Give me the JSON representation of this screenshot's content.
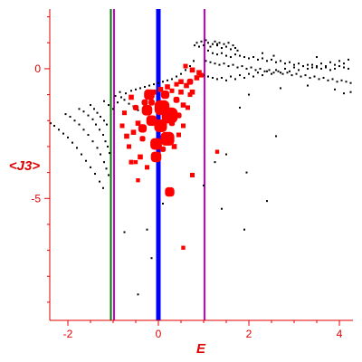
{
  "chart_data": {
    "type": "scatter",
    "title": "",
    "xlabel": "E",
    "ylabel": "<J3>",
    "xlim": [
      -2.4,
      4.3
    ],
    "ylim": [
      -9.7,
      2.3
    ],
    "grid": false,
    "colors": {
      "axes": "#e00000",
      "tick_labels": "#e00000",
      "axis_titles": "#e00000",
      "black_points": "#000000",
      "red_points": "#ff0000",
      "line_green": "#007700",
      "line_magenta": "#cc00cc",
      "line_blue": "#0000ff"
    },
    "x_ticks": [
      {
        "value": -2,
        "label": "-2"
      },
      {
        "value": 0,
        "label": "0"
      },
      {
        "value": 2,
        "label": "2"
      },
      {
        "value": 4,
        "label": "4"
      }
    ],
    "y_ticks": [
      {
        "value": 0,
        "label": "0"
      },
      {
        "value": -5,
        "label": "-5"
      }
    ],
    "vertical_lines": [
      {
        "x": -1.05,
        "color": "#007700",
        "weight": "thin"
      },
      {
        "x": -0.98,
        "color": "#cc00cc",
        "weight": "thin"
      },
      {
        "x": 0.0,
        "color": "#0000ff",
        "weight": "thick"
      },
      {
        "x": 1.02,
        "color": "#cc00cc",
        "weight": "thin"
      }
    ],
    "series": [
      {
        "color": "#000000",
        "marker": "dot",
        "points": [
          [
            -2.38,
            -2.1
          ],
          [
            -2.3,
            -2.2
          ],
          [
            -2.2,
            -2.35
          ],
          [
            -2.1,
            -2.5
          ],
          [
            -2.0,
            -2.65
          ],
          [
            -1.9,
            -2.85
          ],
          [
            -1.8,
            -3.05
          ],
          [
            -1.7,
            -3.3
          ],
          [
            -1.6,
            -3.55
          ],
          [
            -1.5,
            -3.8
          ],
          [
            -1.4,
            -4.05
          ],
          [
            -1.3,
            -4.35
          ],
          [
            -1.22,
            -4.6
          ],
          [
            -2.05,
            -1.75
          ],
          [
            -1.95,
            -1.85
          ],
          [
            -1.85,
            -2.0
          ],
          [
            -1.75,
            -2.15
          ],
          [
            -1.65,
            -2.35
          ],
          [
            -1.55,
            -2.55
          ],
          [
            -1.45,
            -2.8
          ],
          [
            -1.35,
            -3.05
          ],
          [
            -1.28,
            -3.3
          ],
          [
            -1.2,
            -3.6
          ],
          [
            -1.15,
            -3.85
          ],
          [
            -1.1,
            -4.1
          ],
          [
            -1.75,
            -1.55
          ],
          [
            -1.65,
            -1.65
          ],
          [
            -1.55,
            -1.8
          ],
          [
            -1.45,
            -1.95
          ],
          [
            -1.38,
            -2.15
          ],
          [
            -1.3,
            -2.35
          ],
          [
            -1.22,
            -2.55
          ],
          [
            -1.17,
            -2.8
          ],
          [
            -1.12,
            -3.0
          ],
          [
            -1.08,
            -3.25
          ],
          [
            -1.5,
            -1.4
          ],
          [
            -1.42,
            -1.55
          ],
          [
            -1.35,
            -1.7
          ],
          [
            -1.28,
            -1.85
          ],
          [
            -1.2,
            -2.0
          ],
          [
            -1.14,
            -2.15
          ],
          [
            -1.2,
            -1.25
          ],
          [
            -1.1,
            -1.4
          ],
          [
            -1.0,
            -1.55
          ],
          [
            -0.9,
            -1.3
          ],
          [
            -0.82,
            -1.1
          ],
          [
            -0.72,
            -0.95
          ],
          [
            -0.6,
            -0.85
          ],
          [
            -0.5,
            -0.8
          ],
          [
            -0.4,
            -0.75
          ],
          [
            -0.3,
            -0.7
          ],
          [
            -0.2,
            -0.65
          ],
          [
            -0.1,
            -0.6
          ],
          [
            0.0,
            -0.55
          ],
          [
            0.1,
            -0.5
          ],
          [
            0.2,
            -0.45
          ],
          [
            0.3,
            -0.4
          ],
          [
            0.4,
            -0.3
          ],
          [
            0.5,
            -0.2
          ],
          [
            0.6,
            -0.05
          ],
          [
            0.7,
            0.1
          ],
          [
            0.78,
            0.3
          ],
          [
            -0.95,
            -1.05
          ],
          [
            -0.85,
            -0.9
          ],
          [
            -0.75,
            -1.2
          ],
          [
            -0.65,
            -1.35
          ],
          [
            -0.55,
            -1.45
          ],
          [
            -0.45,
            -1.6
          ],
          [
            -0.35,
            -1.3
          ],
          [
            -0.25,
            -1.15
          ],
          [
            0.8,
            0.9
          ],
          [
            0.85,
            1.0
          ],
          [
            0.9,
            0.85
          ],
          [
            0.95,
            1.05
          ],
          [
            1.0,
            0.9
          ],
          [
            1.05,
            1.1
          ],
          [
            1.1,
            1.0
          ],
          [
            1.15,
            0.85
          ],
          [
            1.2,
            0.95
          ],
          [
            1.25,
            1.05
          ],
          [
            1.3,
            0.9
          ],
          [
            1.35,
            1.0
          ],
          [
            1.4,
            0.8
          ],
          [
            1.45,
            0.95
          ],
          [
            1.5,
            0.85
          ],
          [
            1.55,
            1.0
          ],
          [
            1.6,
            0.75
          ],
          [
            1.65,
            0.9
          ],
          [
            1.7,
            0.8
          ],
          [
            1.75,
            0.7
          ],
          [
            1.1,
            0.7
          ],
          [
            1.2,
            0.6
          ],
          [
            1.3,
            0.55
          ],
          [
            1.4,
            0.6
          ],
          [
            1.5,
            0.5
          ],
          [
            1.6,
            0.45
          ],
          [
            1.7,
            0.55
          ],
          [
            1.8,
            0.5
          ],
          [
            1.9,
            0.45
          ],
          [
            2.0,
            0.4
          ],
          [
            2.1,
            0.45
          ],
          [
            2.2,
            0.35
          ],
          [
            2.3,
            0.4
          ],
          [
            2.4,
            0.3
          ],
          [
            2.5,
            0.35
          ],
          [
            2.6,
            0.25
          ],
          [
            2.7,
            0.3
          ],
          [
            2.8,
            0.2
          ],
          [
            2.9,
            0.25
          ],
          [
            3.0,
            0.15
          ],
          [
            3.1,
            0.2
          ],
          [
            3.2,
            0.1
          ],
          [
            3.3,
            0.15
          ],
          [
            3.4,
            0.05
          ],
          [
            3.5,
            0.1
          ],
          [
            3.6,
            0.0
          ],
          [
            3.7,
            0.05
          ],
          [
            3.8,
            -0.05
          ],
          [
            3.9,
            0.0
          ],
          [
            4.0,
            0.1
          ],
          [
            4.1,
            0.05
          ],
          [
            4.2,
            0.0
          ],
          [
            1.05,
            0.3
          ],
          [
            1.15,
            0.25
          ],
          [
            1.25,
            0.2
          ],
          [
            1.35,
            0.15
          ],
          [
            1.45,
            0.2
          ],
          [
            1.55,
            0.1
          ],
          [
            1.65,
            0.15
          ],
          [
            1.75,
            0.05
          ],
          [
            1.85,
            0.1
          ],
          [
            1.95,
            0.0
          ],
          [
            2.05,
            0.05
          ],
          [
            2.15,
            -0.05
          ],
          [
            2.25,
            0.0
          ],
          [
            2.35,
            -0.1
          ],
          [
            2.45,
            -0.05
          ],
          [
            2.55,
            -0.15
          ],
          [
            2.65,
            -0.1
          ],
          [
            2.75,
            -0.2
          ],
          [
            2.85,
            -0.15
          ],
          [
            2.95,
            -0.25
          ],
          [
            3.05,
            -0.2
          ],
          [
            3.15,
            -0.3
          ],
          [
            3.25,
            -0.25
          ],
          [
            3.35,
            -0.35
          ],
          [
            3.45,
            -0.3
          ],
          [
            3.55,
            -0.4
          ],
          [
            3.65,
            -0.35
          ],
          [
            3.75,
            -0.45
          ],
          [
            3.85,
            -0.4
          ],
          [
            3.95,
            -0.5
          ],
          [
            4.05,
            -0.45
          ],
          [
            4.15,
            -0.5
          ],
          [
            4.25,
            -0.55
          ],
          [
            1.0,
            -0.25
          ],
          [
            1.1,
            -0.3
          ],
          [
            1.2,
            -0.35
          ],
          [
            1.3,
            -0.4
          ],
          [
            1.4,
            -0.35
          ],
          [
            1.5,
            -0.45
          ],
          [
            1.6,
            -0.3
          ],
          [
            1.7,
            -0.4
          ],
          [
            1.8,
            -0.25
          ],
          [
            1.9,
            -0.35
          ],
          [
            2.0,
            -0.2
          ],
          [
            2.1,
            -0.3
          ],
          [
            2.2,
            -0.15
          ],
          [
            2.3,
            -0.25
          ],
          [
            2.4,
            -0.1
          ],
          [
            2.5,
            -0.2
          ],
          [
            2.6,
            -0.05
          ],
          [
            2.7,
            -0.15
          ],
          [
            2.8,
            0.0
          ],
          [
            2.9,
            -0.1
          ],
          [
            3.0,
            0.05
          ],
          [
            3.1,
            -0.05
          ],
          [
            3.2,
            0.1
          ],
          [
            3.3,
            0.0
          ],
          [
            3.4,
            0.15
          ],
          [
            3.5,
            0.05
          ],
          [
            3.6,
            0.2
          ],
          [
            3.7,
            0.1
          ],
          [
            3.8,
            0.25
          ],
          [
            3.9,
            0.15
          ],
          [
            4.0,
            0.3
          ],
          [
            4.1,
            0.2
          ],
          [
            4.2,
            0.35
          ],
          [
            2.7,
            -0.75
          ],
          [
            3.3,
            -0.65
          ],
          [
            3.9,
            -0.8
          ],
          [
            4.1,
            -0.95
          ],
          [
            4.25,
            -0.9
          ],
          [
            2.0,
            -1.0
          ],
          [
            2.3,
            0.6
          ],
          [
            3.5,
            0.45
          ],
          [
            1.3,
            0.95
          ],
          [
            2.55,
            0.5
          ],
          [
            1.8,
            -1.5
          ],
          [
            2.6,
            -2.6
          ],
          [
            1.5,
            -3.3
          ],
          [
            1.25,
            -3.6
          ],
          [
            1.95,
            -4.0
          ],
          [
            1.0,
            -4.5
          ],
          [
            1.4,
            -5.4
          ],
          [
            1.9,
            -6.2
          ],
          [
            2.4,
            -5.1
          ],
          [
            -0.25,
            -6.2
          ],
          [
            -0.15,
            -7.3
          ],
          [
            -0.45,
            -8.7
          ],
          [
            -0.75,
            -6.3
          ],
          [
            0.1,
            -5.2
          ]
        ]
      },
      {
        "color": "#ff0000",
        "marker": "square",
        "points": [
          {
            "x": -0.2,
            "y": -1.0,
            "size": 1.6
          },
          {
            "x": -0.25,
            "y": -1.6,
            "size": 1.6
          },
          {
            "x": 0.08,
            "y": -1.5,
            "size": 2.4
          },
          {
            "x": 0.25,
            "y": -1.8,
            "size": 2.6
          },
          {
            "x": 0.05,
            "y": -2.2,
            "size": 2.0
          },
          {
            "x": 0.2,
            "y": -2.7,
            "size": 2.2
          },
          {
            "x": -0.05,
            "y": -2.9,
            "size": 1.8
          },
          {
            "x": -0.15,
            "y": -2.0,
            "size": 1.6
          },
          {
            "x": 0.15,
            "y": -1.0,
            "size": 1.2
          },
          {
            "x": -0.05,
            "y": -3.4,
            "size": 1.6
          },
          {
            "x": 0.25,
            "y": -4.75,
            "size": 1.4
          },
          {
            "x": -0.35,
            "y": -2.3,
            "size": 1.2
          },
          {
            "x": -0.3,
            "y": -1.3,
            "size": 0.8
          },
          {
            "x": -0.35,
            "y": -2.7,
            "size": 0.7
          },
          {
            "x": -0.5,
            "y": -1.5,
            "size": 0.7
          },
          {
            "x": -0.45,
            "y": -2.1,
            "size": 0.6
          },
          {
            "x": -0.55,
            "y": -2.45,
            "size": 0.6
          },
          {
            "x": -0.4,
            "y": -3.4,
            "size": 0.6
          },
          {
            "x": -0.6,
            "y": -1.1,
            "size": 0.6
          },
          {
            "x": -0.7,
            "y": -2.6,
            "size": 0.6
          },
          {
            "x": -0.8,
            "y": -2.2,
            "size": 0.5
          },
          {
            "x": -0.75,
            "y": -1.7,
            "size": 0.5
          },
          {
            "x": -0.65,
            "y": -3.0,
            "size": 0.5
          },
          {
            "x": -0.6,
            "y": -3.6,
            "size": 0.5
          },
          {
            "x": 0.4,
            "y": -1.2,
            "size": 0.8
          },
          {
            "x": 0.5,
            "y": -0.9,
            "size": 0.6
          },
          {
            "x": 0.45,
            "y": -1.8,
            "size": 0.7
          },
          {
            "x": 0.55,
            "y": -1.4,
            "size": 0.6
          },
          {
            "x": 0.62,
            "y": -0.65,
            "size": 0.6
          },
          {
            "x": 0.75,
            "y": -0.9,
            "size": 0.6
          },
          {
            "x": 0.7,
            "y": -0.5,
            "size": 0.8
          },
          {
            "x": 0.85,
            "y": -0.35,
            "size": 0.6
          },
          {
            "x": 0.9,
            "y": -0.15,
            "size": 0.6
          },
          {
            "x": 0.95,
            "y": -0.25,
            "size": 0.5
          },
          {
            "x": 0.75,
            "y": -0.05,
            "size": 0.6
          },
          {
            "x": 0.6,
            "y": 0.1,
            "size": 0.5
          },
          {
            "x": 0.7,
            "y": -1.0,
            "size": 0.5
          },
          {
            "x": 0.65,
            "y": -1.5,
            "size": 0.5
          },
          {
            "x": 0.35,
            "y": -3.0,
            "size": 0.6
          },
          {
            "x": 0.3,
            "y": -2.1,
            "size": 0.7
          },
          {
            "x": 0.1,
            "y": -3.1,
            "size": 0.7
          },
          {
            "x": 0.2,
            "y": -0.7,
            "size": 0.6
          },
          {
            "x": 0.05,
            "y": -0.8,
            "size": 0.6
          },
          {
            "x": -0.1,
            "y": -0.9,
            "size": 0.6
          },
          {
            "x": -0.15,
            "y": -1.3,
            "size": 0.8
          },
          {
            "x": 0.5,
            "y": -0.5,
            "size": 0.6
          },
          {
            "x": 0.4,
            "y": -0.6,
            "size": 0.5
          },
          {
            "x": 0.3,
            "y": -0.85,
            "size": 0.5
          },
          {
            "x": 0.45,
            "y": -2.55,
            "size": 0.5
          },
          {
            "x": 0.55,
            "y": -2.2,
            "size": 0.5
          },
          {
            "x": 0.75,
            "y": -4.1,
            "size": 0.5
          },
          {
            "x": 1.3,
            "y": -3.2,
            "size": 0.4
          },
          {
            "x": 0.55,
            "y": -6.9,
            "size": 0.4
          },
          {
            "x": -0.25,
            "y": -3.8,
            "size": 0.5
          },
          {
            "x": -0.5,
            "y": -3.6,
            "size": 0.4
          },
          {
            "x": -0.45,
            "y": -4.3,
            "size": 0.4
          }
        ]
      }
    ]
  }
}
